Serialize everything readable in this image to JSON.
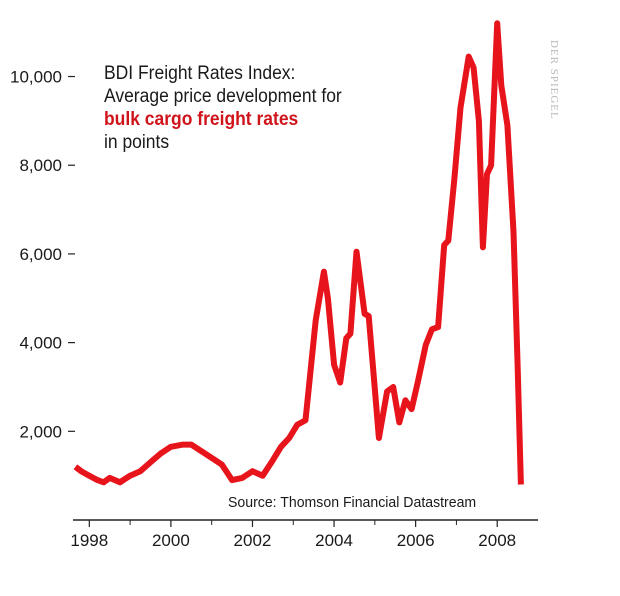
{
  "chart_data": {
    "type": "line",
    "title_lines": [
      "BDI Freight Rates Index:",
      "Average price development for",
      "bulk cargo freight rates",
      "in points"
    ],
    "highlight_line_index": 2,
    "source": "Source: Thomson Financial Datastream",
    "watermark": "DER SPIEGEL",
    "line_color": "#e8141c",
    "ylim": [
      0,
      11500
    ],
    "yticks": [
      {
        "value": 2000,
        "label": "2,000"
      },
      {
        "value": 4000,
        "label": "4,000"
      },
      {
        "value": 6000,
        "label": "6,000"
      },
      {
        "value": 8000,
        "label": "8,000"
      },
      {
        "value": 10000,
        "label": "10,000"
      }
    ],
    "xlim": [
      1997.6,
      2009.0
    ],
    "xticks": [
      {
        "value": 1998,
        "label": "1998"
      },
      {
        "value": 2000,
        "label": "2000"
      },
      {
        "value": 2002,
        "label": "2002"
      },
      {
        "value": 2004,
        "label": "2004"
      },
      {
        "value": 2006,
        "label": "2006"
      },
      {
        "value": 2008,
        "label": "2008"
      }
    ],
    "minor_xticks": [
      1999,
      2001,
      2003,
      2005,
      2007
    ],
    "series": [
      {
        "name": "BDI",
        "x": [
          1997.66,
          1997.8,
          1998.0,
          1998.2,
          1998.35,
          1998.5,
          1998.75,
          1999.0,
          1999.25,
          1999.5,
          1999.75,
          2000.0,
          2000.3,
          2000.5,
          2000.75,
          2001.0,
          2001.25,
          2001.5,
          2001.75,
          2002.0,
          2002.25,
          2002.5,
          2002.7,
          2002.9,
          2003.1,
          2003.3,
          2003.55,
          2003.75,
          2003.85,
          2004.0,
          2004.15,
          2004.3,
          2004.4,
          2004.55,
          2004.75,
          2004.85,
          2004.95,
          2005.1,
          2005.3,
          2005.45,
          2005.6,
          2005.75,
          2005.9,
          2006.05,
          2006.25,
          2006.4,
          2006.55,
          2006.7,
          2006.8,
          2006.95,
          2007.1,
          2007.3,
          2007.42,
          2007.55,
          2007.65,
          2007.75,
          2007.85,
          2008.0,
          2008.1,
          2008.25,
          2008.4,
          2008.5,
          2008.58
        ],
        "y": [
          1200,
          1100,
          1000,
          900,
          850,
          950,
          850,
          1000,
          1100,
          1300,
          1500,
          1650,
          1700,
          1700,
          1550,
          1400,
          1250,
          900,
          950,
          1100,
          1000,
          1350,
          1650,
          1850,
          2150,
          2250,
          4500,
          5600,
          5000,
          3500,
          3100,
          4100,
          4200,
          6050,
          4650,
          4600,
          3500,
          1850,
          2900,
          3000,
          2200,
          2700,
          2500,
          3100,
          3950,
          4300,
          4350,
          6200,
          6300,
          7700,
          9300,
          10450,
          10200,
          9000,
          6150,
          7800,
          8000,
          11200,
          9800,
          8900,
          6500,
          3500,
          800
        ]
      }
    ]
  }
}
